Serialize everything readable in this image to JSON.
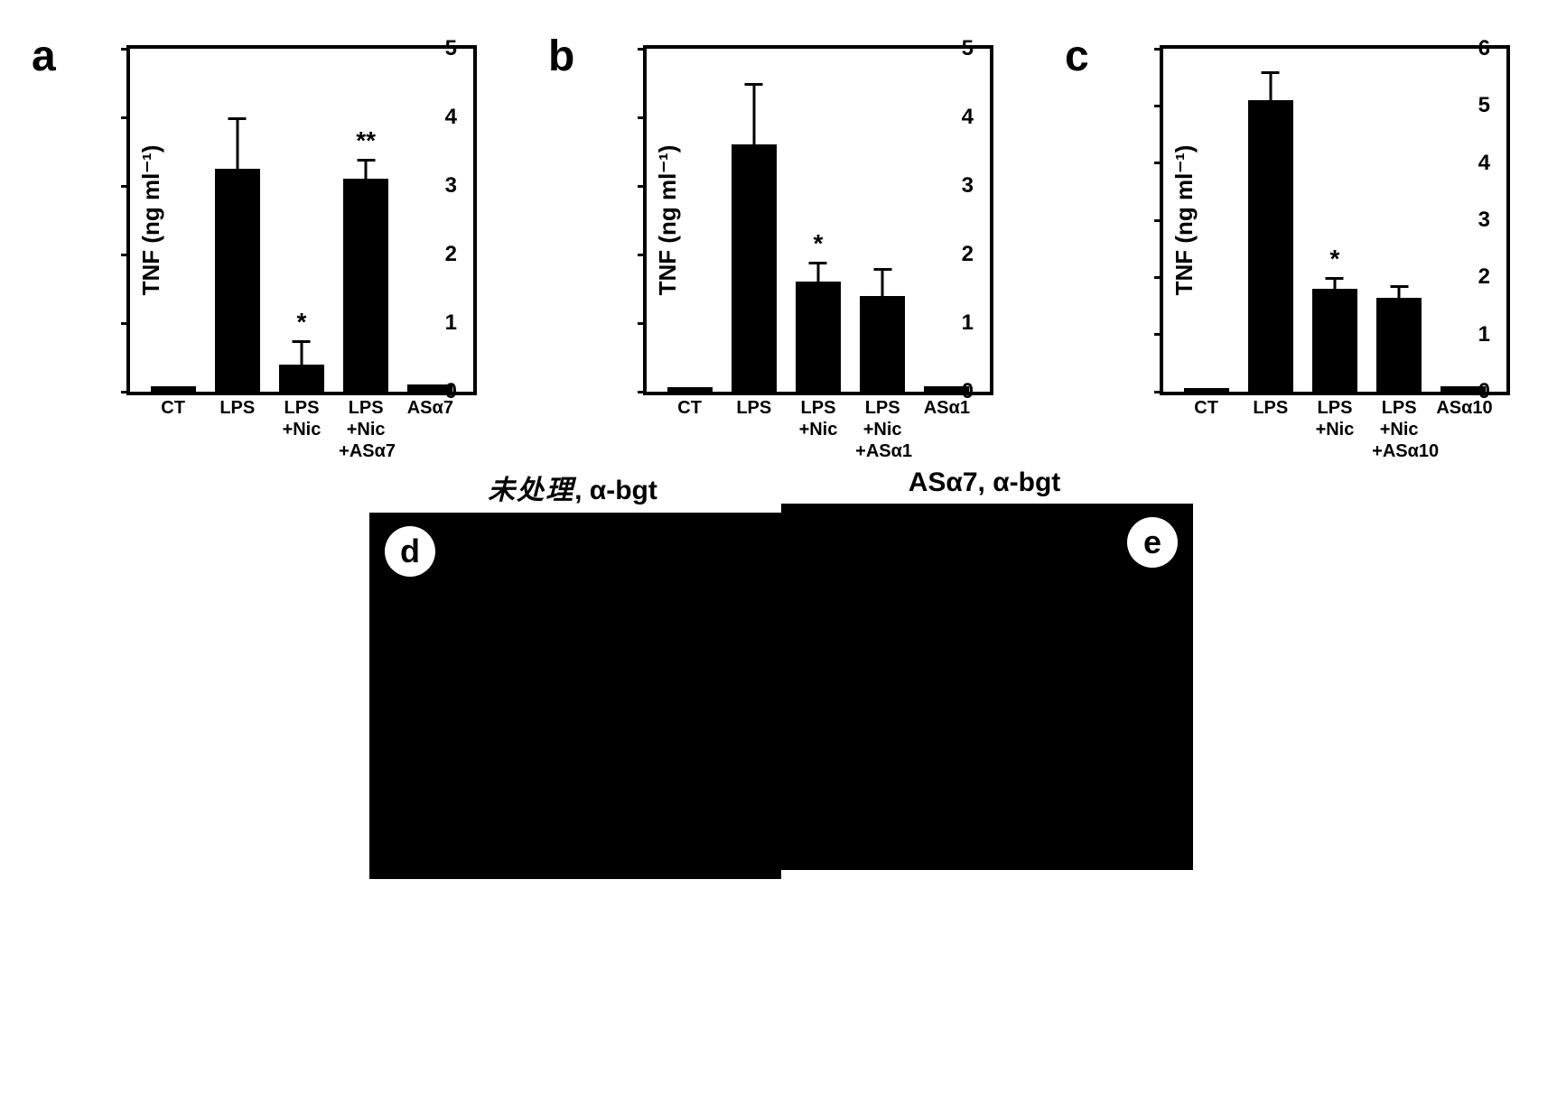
{
  "chart_a": {
    "type": "bar",
    "panel_label": "a",
    "ylabel": "TNF (ng ml⁻¹)",
    "ylim": [
      0,
      5
    ],
    "ytick_step": 1,
    "categories": [
      "CT",
      "LPS",
      "LPS\n+Nic",
      "LPS\n+Nic\n+ASα7",
      "ASα7"
    ],
    "values": [
      0.08,
      3.25,
      0.4,
      3.1,
      0.1
    ],
    "errors": [
      0,
      0.75,
      0.35,
      0.3,
      0
    ],
    "significance": [
      "",
      "",
      "*",
      "**",
      ""
    ],
    "bar_color": "#000000",
    "border_color": "#000000",
    "background_color": "#ffffff",
    "label_fontsize": 26,
    "tick_fontsize": 24,
    "cat_fontsize": 20
  },
  "chart_b": {
    "type": "bar",
    "panel_label": "b",
    "ylabel": "TNF (ng ml⁻¹)",
    "ylim": [
      0,
      5
    ],
    "ytick_step": 1,
    "categories": [
      "CT",
      "LPS",
      "LPS\n+Nic",
      "LPS\n+Nic\n+ASα1",
      "ASα1"
    ],
    "values": [
      0.07,
      3.6,
      1.6,
      1.4,
      0.08
    ],
    "errors": [
      0,
      0.9,
      0.3,
      0.4,
      0
    ],
    "significance": [
      "",
      "",
      "*",
      "",
      ""
    ],
    "bar_color": "#000000",
    "border_color": "#000000",
    "background_color": "#ffffff",
    "label_fontsize": 26,
    "tick_fontsize": 24,
    "cat_fontsize": 20
  },
  "chart_c": {
    "type": "bar",
    "panel_label": "c",
    "ylabel": "TNF (ng ml⁻¹)",
    "ylim": [
      0,
      6
    ],
    "ytick_step": 1,
    "categories": [
      "CT",
      "LPS",
      "LPS\n+Nic",
      "LPS\n+Nic\n+ASα10",
      "ASα10"
    ],
    "values": [
      0.07,
      5.1,
      1.8,
      1.65,
      0.1
    ],
    "errors": [
      0,
      0.5,
      0.2,
      0.22,
      0
    ],
    "significance": [
      "",
      "",
      "*",
      "",
      ""
    ],
    "bar_color": "#000000",
    "border_color": "#000000",
    "background_color": "#ffffff",
    "label_fontsize": 26,
    "tick_fontsize": 24,
    "cat_fontsize": 20
  },
  "image_d": {
    "panel_label": "d",
    "title_cjk": "未处理",
    "title_suffix": ", α-bgt",
    "background_color": "#000000"
  },
  "image_e": {
    "panel_label": "e",
    "title": "ASα7, α-bgt",
    "background_color": "#000000"
  }
}
